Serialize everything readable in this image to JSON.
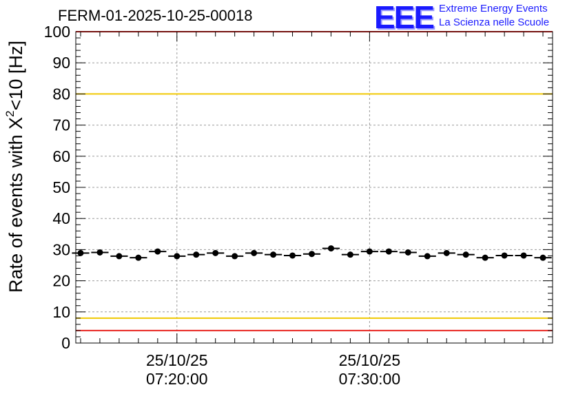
{
  "run_title": "FERM-01-2025-10-25-00018",
  "logo": {
    "mark": "EEE",
    "line1": "Extreme Energy Events",
    "line2": "La Scienza nelle Scuole"
  },
  "colors": {
    "threshold_red": "#e8201c",
    "threshold_yellow": "#f0c800",
    "markers": "#000000",
    "grid": "#999999"
  },
  "chart_data": {
    "type": "scatter",
    "title": "FERM-01-2025-10-25-00018",
    "ylabel_prefix": "Rate of events with X",
    "ylabel_sup": "2",
    "ylabel_suffix": "<10 [Hz]",
    "ylim": [
      0,
      100
    ],
    "yticks": [
      0,
      10,
      20,
      30,
      40,
      50,
      60,
      70,
      80,
      90,
      100
    ],
    "xlim_minutes": [
      14.75,
      39.5
    ],
    "xticks": [
      {
        "minutes": 20,
        "date": "25/10/25",
        "time": "07:20:00"
      },
      {
        "minutes": 30,
        "date": "25/10/25",
        "time": "07:30:00"
      }
    ],
    "x_minutes": [
      15.0,
      16.0,
      17.0,
      18.0,
      19.0,
      20.0,
      21.0,
      22.0,
      23.0,
      24.0,
      25.0,
      26.0,
      27.0,
      28.0,
      29.0,
      30.0,
      31.0,
      32.0,
      33.0,
      34.0,
      35.0,
      36.0,
      37.0,
      38.0,
      39.0
    ],
    "values": [
      28.9,
      29.1,
      27.9,
      27.4,
      29.4,
      27.9,
      28.4,
      28.9,
      27.9,
      28.9,
      28.4,
      28.1,
      28.6,
      30.4,
      28.4,
      29.4,
      29.4,
      29.1,
      27.9,
      28.9,
      28.4,
      27.4,
      28.1,
      28.1,
      27.4
    ],
    "bin_width_minutes": 0.9,
    "reference_lines": [
      {
        "value": 4,
        "color": "red"
      },
      {
        "value": 8,
        "color": "yellow"
      },
      {
        "value": 80,
        "color": "yellow"
      },
      {
        "value": 100,
        "color": "red"
      }
    ],
    "grid": true
  }
}
